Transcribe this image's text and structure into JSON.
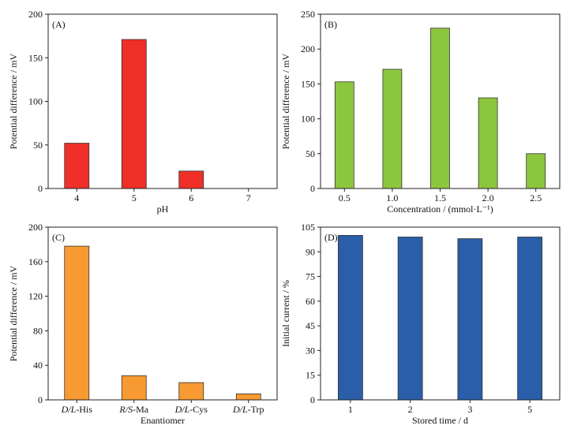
{
  "colors": {
    "A": "#ee3028",
    "B": "#8cc63f",
    "C": "#f79a32",
    "D": "#2a5ea9",
    "edge": "#333333"
  },
  "chart_data": [
    {
      "panel": "(A)",
      "type": "bar",
      "categories": [
        "4",
        "5",
        "6",
        "7"
      ],
      "values": [
        52,
        171,
        20,
        0
      ],
      "xlabel": "pH",
      "ylabel": "Potential difference / mV",
      "ylim": [
        0,
        200
      ],
      "yticks": [
        "0",
        "50",
        "100",
        "150",
        "200"
      ],
      "grid": false
    },
    {
      "panel": "(B)",
      "type": "bar",
      "categories": [
        "0.5",
        "1.0",
        "1.5",
        "2.0",
        "2.5"
      ],
      "values": [
        153,
        171,
        230,
        130,
        50
      ],
      "xlabel": "Concentration / (mmol·L⁻¹)",
      "ylabel": "Potential difference / mV",
      "ylim": [
        0,
        250
      ],
      "yticks": [
        "0",
        "50",
        "100",
        "150",
        "200",
        "250"
      ],
      "grid": false
    },
    {
      "panel": "(C)",
      "type": "bar",
      "categories": [
        "D/L-His",
        "R/S-Ma",
        "D/L-Cys",
        "D/L-Trp"
      ],
      "values": [
        178,
        28,
        20,
        7
      ],
      "xlabel": "Enantiomer",
      "ylabel": "Potential difference / mV",
      "ylim": [
        0,
        200
      ],
      "yticks": [
        "0",
        "40",
        "80",
        "120",
        "160",
        "200"
      ],
      "grid": false
    },
    {
      "panel": "(D)",
      "type": "bar",
      "categories": [
        "1",
        "2",
        "3",
        "5"
      ],
      "values": [
        100,
        99,
        98,
        99
      ],
      "xlabel": "Stored time / d",
      "ylabel": "Initial current / %",
      "ylim": [
        0,
        105
      ],
      "yticks": [
        "0",
        "15",
        "30",
        "45",
        "60",
        "75",
        "90",
        "105"
      ],
      "grid": false
    }
  ]
}
